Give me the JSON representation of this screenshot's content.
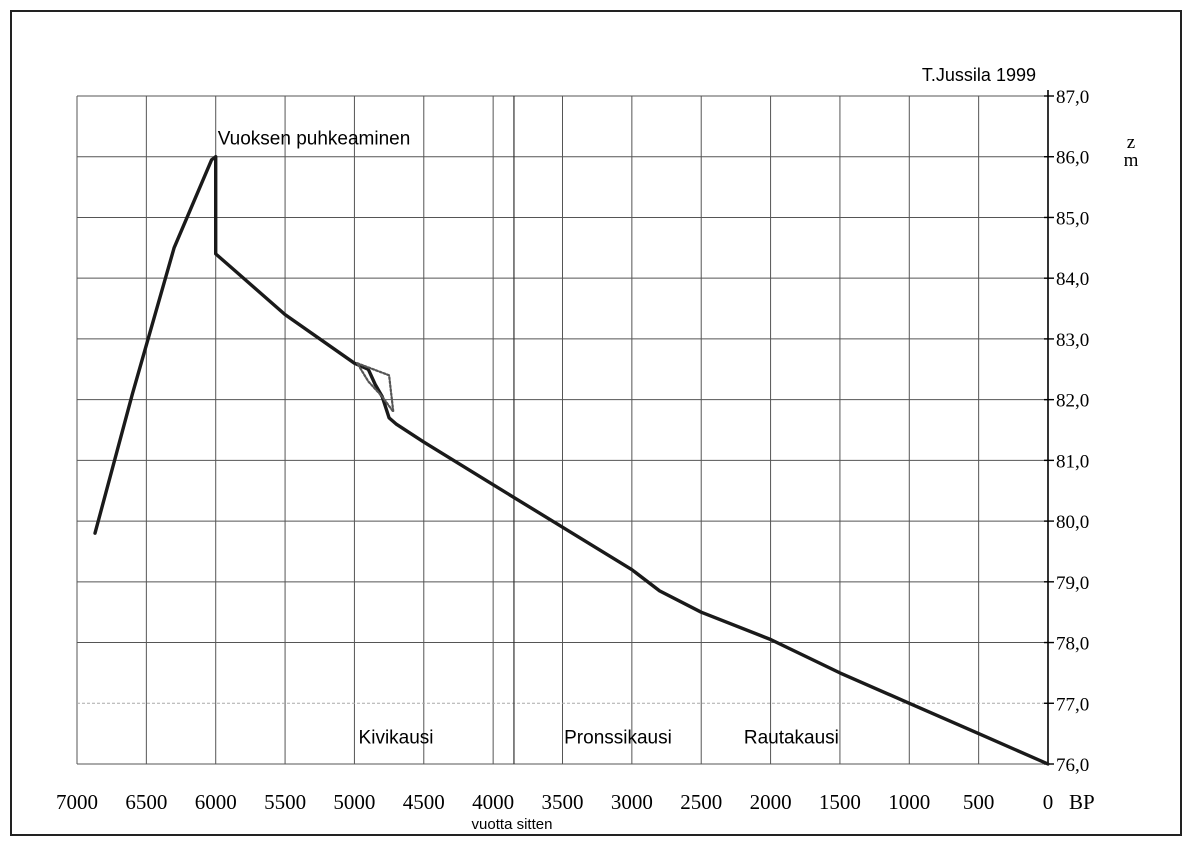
{
  "chart_data": {
    "type": "line",
    "credit": "T.Jussila 1999",
    "xlabel": "vuotta sitten",
    "x_unit": "BP",
    "ylabel_lines": [
      "z",
      "m"
    ],
    "xlim": [
      7000,
      0
    ],
    "ylim": [
      76,
      87
    ],
    "x_ticks": [
      7000,
      6500,
      6000,
      5500,
      5000,
      4500,
      4000,
      3500,
      3000,
      2500,
      2000,
      1500,
      1000,
      500,
      0
    ],
    "x_tick_labels": [
      "7000",
      "6500",
      "6000",
      "5500",
      "5000",
      "4500",
      "4000",
      "3500",
      "3000",
      "2500",
      "2000",
      "1500",
      "1000",
      "500",
      "0"
    ],
    "y_ticks": [
      76,
      77,
      78,
      79,
      80,
      81,
      82,
      83,
      84,
      85,
      86,
      87
    ],
    "y_tick_labels": [
      "76,0",
      "77,0",
      "78,0",
      "79,0",
      "80,0",
      "81,0",
      "82,0",
      "83,0",
      "84,0",
      "85,0",
      "86,0",
      "87,0"
    ],
    "grid": true,
    "reference_line_y": 77,
    "series": [
      {
        "style": "solid",
        "points": [
          [
            6870,
            79.8
          ],
          [
            6600,
            82.1
          ],
          [
            6300,
            84.5
          ],
          [
            6030,
            85.95
          ],
          [
            6000,
            86.0
          ],
          [
            6000,
            84.4
          ],
          [
            5900,
            84.2
          ],
          [
            5500,
            83.4
          ],
          [
            5000,
            82.6
          ],
          [
            4900,
            82.5
          ],
          [
            4850,
            82.25
          ],
          [
            4800,
            82.05
          ],
          [
            4750,
            81.7
          ],
          [
            4700,
            81.6
          ],
          [
            4500,
            81.3
          ],
          [
            4000,
            80.6
          ],
          [
            3500,
            79.9
          ],
          [
            3000,
            79.2
          ],
          [
            2800,
            78.85
          ],
          [
            2500,
            78.5
          ],
          [
            2000,
            78.05
          ],
          [
            1500,
            77.5
          ],
          [
            1000,
            77.0
          ],
          [
            500,
            76.5
          ],
          [
            0,
            76.0
          ]
        ]
      },
      {
        "style": "dotted",
        "points": [
          [
            4980,
            82.6
          ],
          [
            4750,
            82.4
          ],
          [
            4720,
            81.8
          ],
          [
            4800,
            82.05
          ],
          [
            4900,
            82.3
          ],
          [
            4980,
            82.6
          ]
        ]
      }
    ],
    "annotations": [
      {
        "text": "Vuoksen puhkeaminen",
        "x": 6000,
        "y": 86.0
      },
      {
        "text": "Kivikausi",
        "x": 4700,
        "y": 76.45
      },
      {
        "text": "Pronssikausi",
        "x": 3100,
        "y": 76.45
      },
      {
        "text": "Rautakausi",
        "x": 1850,
        "y": 76.45
      }
    ],
    "period_dividers": [
      3850
    ]
  }
}
